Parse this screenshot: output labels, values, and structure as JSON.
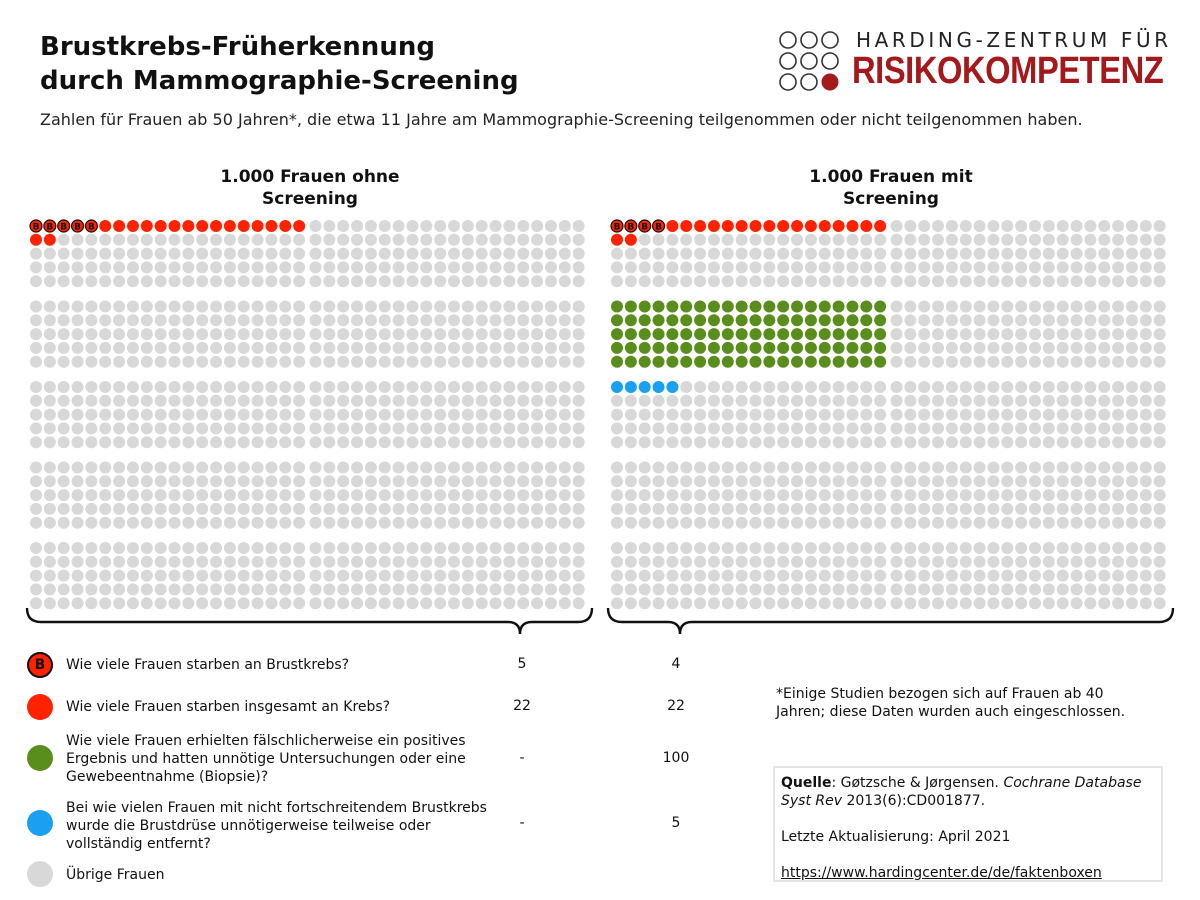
{
  "title_line1": "Brustkrebs-Früherkennung",
  "title_line2": "durch Mammographie-Screening",
  "subtitle": "Zahlen für Frauen ab 50 Jahren*, die etwa 11 Jahre am Mammographie-Screening teilgenommen oder nicht teilgenommen haben.",
  "logo": {
    "line1": "HARDING-ZENTRUM FÜR",
    "line2": "RISIKOKOMPETENZ"
  },
  "colors": {
    "breast_cancer_death": "#ff2200",
    "cancer_death": "#ff2200",
    "false_positive": "#5a8e1c",
    "overtreatment": "#1aa0f0",
    "other": "#d8d8d8",
    "brand": "#a3191c"
  },
  "chart_data": {
    "type": "icon-array",
    "total_per_group": 1000,
    "groups": [
      {
        "title_line1": "1.000 Frauen ohne",
        "title_line2": "Screening",
        "counts": {
          "breast_cancer_deaths": 5,
          "cancer_deaths": 22,
          "false_positive": 0,
          "overtreatment": 0
        }
      },
      {
        "title_line1": "1.000 Frauen mit",
        "title_line2": "Screening",
        "counts": {
          "breast_cancer_deaths": 4,
          "cancer_deaths": 22,
          "false_positive": 100,
          "overtreatment": 5
        }
      }
    ],
    "icon_marker_letter": "B"
  },
  "legend": [
    {
      "key": "breast_cancer",
      "icon_letter": "B",
      "color": "#ff2200",
      "text": "Wie viele Frauen starben an Brustkrebs?",
      "without": "5",
      "with": "4"
    },
    {
      "key": "cancer",
      "color": "#ff2200",
      "text": "Wie viele Frauen starben insgesamt an Krebs?",
      "without": "22",
      "with": "22"
    },
    {
      "key": "false_positive",
      "color": "#5a8e1c",
      "text": "Wie viele Frauen erhielten fälschlicherweise ein positives Ergebnis und hatten unnötige Untersuchungen oder eine Gewebeentnahme (Biopsie)?",
      "without": "-",
      "with": "100"
    },
    {
      "key": "overtreatment",
      "color": "#1aa0f0",
      "text": "Bei wie vielen Frauen mit nicht fortschreitendem Brustkrebs wurde die Brustdrüse unnötigerweise teilweise oder vollständig entfernt?",
      "without": "-",
      "with": "5"
    },
    {
      "key": "other",
      "color": "#d8d8d8",
      "text": "Übrige Frauen"
    }
  ],
  "footnote": "*Einige Studien bezogen sich auf Frauen ab 40 Jahren; diese Daten wurden auch eingeschlossen.",
  "source": {
    "label": "Quelle",
    "authors": ": Gøtzsche & Jørgensen. ",
    "journal": "Cochrane Database Syst Rev",
    "ref": " 2013(6):CD001877.",
    "updated": "Letzte Aktualisierung: April 2021",
    "url": "https://www.hardingcenter.de/de/faktenboxen"
  }
}
